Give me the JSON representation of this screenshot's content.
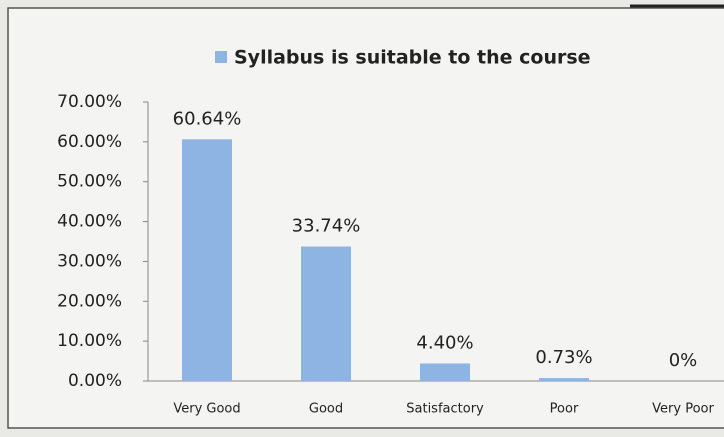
{
  "chart_data": {
    "type": "bar",
    "categories": [
      "Very Good",
      "Good",
      "Satisfactory",
      "Poor",
      "Very Poor"
    ],
    "series": [
      {
        "name": "Syllabus is suitable to the course",
        "color": "#8db4e2",
        "values": [
          60.64,
          33.74,
          4.4,
          0.73,
          0
        ],
        "value_labels": [
          "60.64%",
          "33.74%",
          "4.40%",
          "0.73%",
          "0%"
        ]
      }
    ],
    "ylim": [
      0,
      70
    ],
    "yticks": [
      {
        "value": 0,
        "label": "0.00%"
      },
      {
        "value": 10,
        "label": "10.00%"
      },
      {
        "value": 20,
        "label": "20.00%"
      },
      {
        "value": 30,
        "label": "30.00%"
      },
      {
        "value": 40,
        "label": "40.00%"
      },
      {
        "value": 50,
        "label": "50.00%"
      },
      {
        "value": 60,
        "label": "60.00%"
      },
      {
        "value": 70,
        "label": "70.00%"
      }
    ],
    "grid": false,
    "legend": "top"
  }
}
